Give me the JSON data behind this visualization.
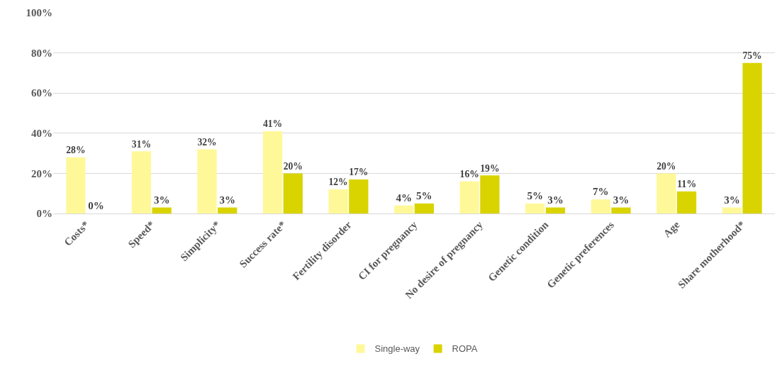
{
  "chart_data": {
    "type": "bar",
    "categories": [
      "Costs*",
      "Speed*",
      "Simplicity*",
      "Success rate*",
      "Fertility disorder",
      "CI for pregnancy",
      "No desire of pregnancy",
      "Genetic condition",
      "Genetic preferences",
      "Age",
      "Share motherhood*"
    ],
    "series": [
      {
        "name": "Single-way",
        "color": "#fff899",
        "values": [
          28,
          31,
          32,
          41,
          12,
          4,
          16,
          5,
          7,
          20,
          3
        ],
        "value_labels": [
          "28%",
          "31%",
          "32%",
          "41%",
          "12%",
          "4%",
          "16%",
          "5%",
          "7%",
          "20%",
          "3%"
        ]
      },
      {
        "name": "ROPA",
        "color": "#d9d400",
        "values": [
          0,
          3,
          3,
          20,
          17,
          5,
          19,
          3,
          3,
          11,
          75
        ],
        "value_labels": [
          "0%",
          "3%",
          "3%",
          "20%",
          "17%",
          "5%",
          "19%",
          "3%",
          "3%",
          "11%",
          "75%"
        ]
      }
    ],
    "ylim": [
      0,
      100
    ],
    "yticks": [
      {
        "value": 0,
        "label": "0%"
      },
      {
        "value": 20,
        "label": "20%"
      },
      {
        "value": 40,
        "label": "40%"
      },
      {
        "value": 60,
        "label": "60%"
      },
      {
        "value": 80,
        "label": "80%"
      },
      {
        "value": 100,
        "label": "100%"
      }
    ],
    "grid": "y",
    "legend": "bottom"
  }
}
